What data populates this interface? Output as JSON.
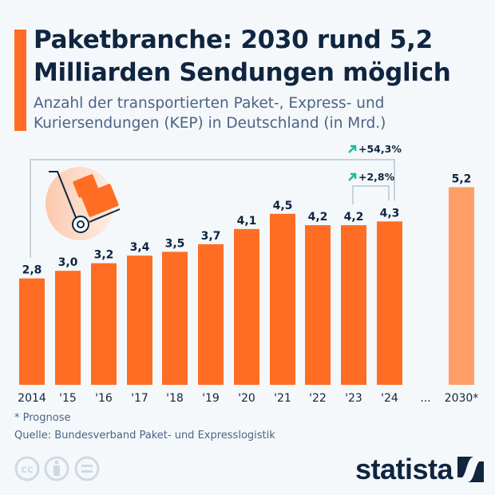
{
  "title": "Paketbranche: 2030 rund 5,2 Milliarden Sendungen möglich",
  "subtitle": "Anzahl der transportierten Paket-, Express- und Kuriersendungen (KEP) in Deutschland (in Mrd.)",
  "colors": {
    "bar": "#ff6d24",
    "forecast_bar": "#ff9e66",
    "text": "#0f2540",
    "arrow": "#1abc9c"
  },
  "chart_data": {
    "type": "bar",
    "title": "Paketbranche: 2030 rund 5,2 Milliarden Sendungen möglich",
    "ylabel": "",
    "xlabel": "",
    "ylim": [
      0,
      5.2
    ],
    "grid": false,
    "categories": [
      "2014",
      "'15",
      "'16",
      "'17",
      "'18",
      "'19",
      "'20",
      "'21",
      "'22",
      "'23",
      "'24",
      "2030*"
    ],
    "values": [
      2.8,
      3.0,
      3.2,
      3.4,
      3.5,
      3.7,
      4.1,
      4.5,
      4.2,
      4.2,
      4.3,
      5.2
    ],
    "labels": [
      "2,8",
      "3,0",
      "3,2",
      "3,4",
      "3,5",
      "3,7",
      "4,1",
      "4,5",
      "4,2",
      "4,2",
      "4,3",
      "5,2"
    ],
    "forecast": [
      false,
      false,
      false,
      false,
      false,
      false,
      false,
      false,
      false,
      false,
      false,
      true
    ],
    "gap_label": "...",
    "annotations": [
      {
        "text": "+54,3%",
        "from": "2014",
        "to": "'24"
      },
      {
        "text": "+2,8%",
        "from": "'23",
        "to": "'24"
      }
    ]
  },
  "footer": {
    "note": "* Prognose",
    "source": "Quelle: Bundesverband Paket- und Expresslogistik",
    "brand": "statista",
    "license_icons": [
      "cc-icon",
      "by-icon",
      "nd-icon"
    ]
  }
}
